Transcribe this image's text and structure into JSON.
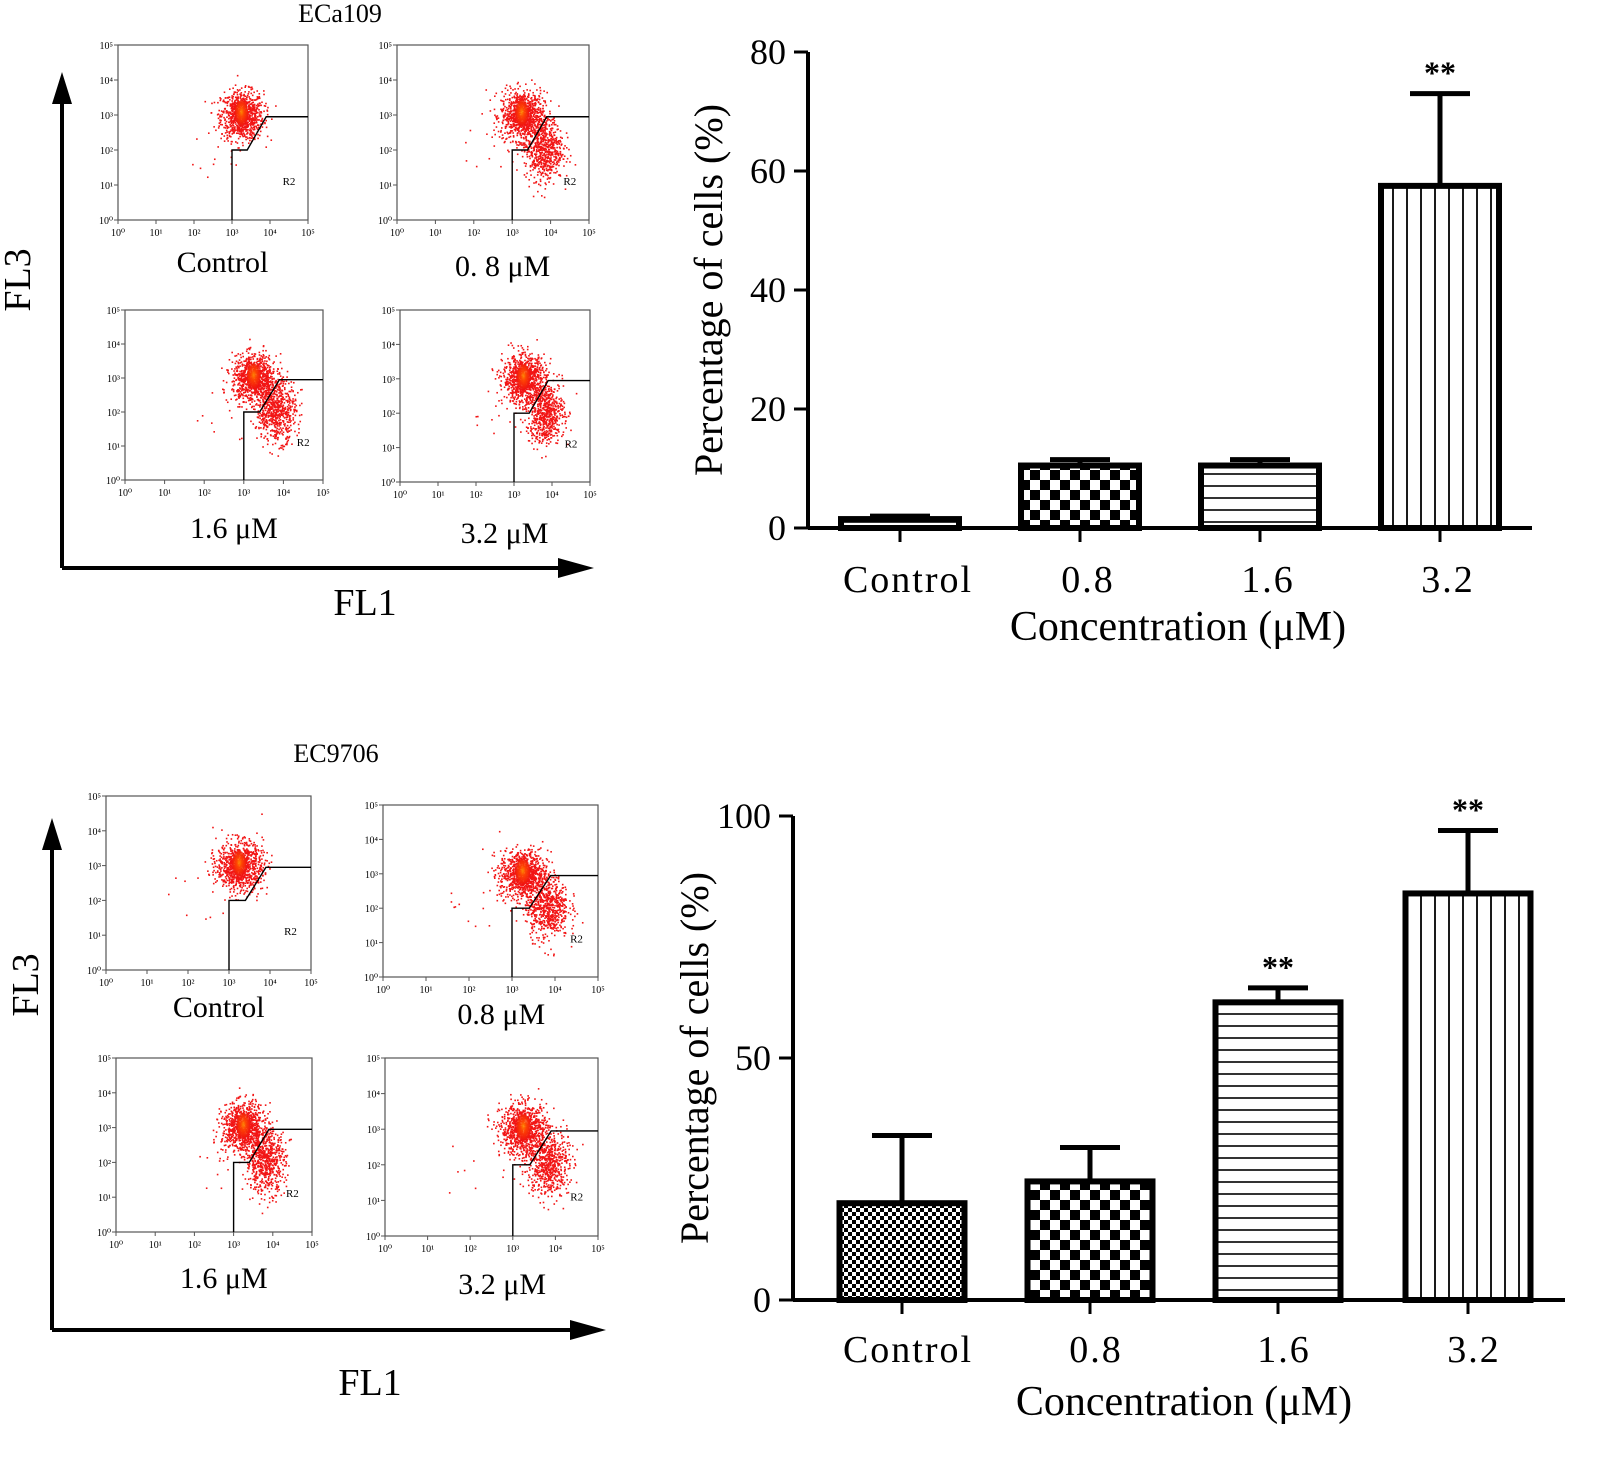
{
  "chart_data": [
    {
      "type": "scatter",
      "title": "ECa109",
      "xlabel": "FL1",
      "ylabel": "FL3",
      "panels": [
        {
          "label": "Control",
          "gate": "R2",
          "lower_right_cluster": false
        },
        {
          "label": "0. 8 μM",
          "gate": "R2",
          "lower_right_cluster": true
        },
        {
          "label": "1.6 μM",
          "gate": "R2",
          "lower_right_cluster": true
        },
        {
          "label": "3.2 μM",
          "gate": "R2",
          "lower_right_cluster": true
        }
      ],
      "tick_labels": [
        "10⁰",
        "10¹",
        "10²",
        "10³",
        "10⁴",
        "10⁵"
      ]
    },
    {
      "type": "bar",
      "title": "",
      "xlabel": "Concentration (μM)",
      "ylabel": "Percentage of cells (%)",
      "ylim": [
        0,
        80
      ],
      "yticks": [
        0,
        20,
        40,
        60,
        80
      ],
      "categories": [
        "Control",
        "0.8",
        "1.6",
        "3.2"
      ],
      "values": [
        1.5,
        10.5,
        10.5,
        57.5
      ],
      "errors": [
        0.5,
        1.0,
        1.0,
        15.5
      ],
      "patterns": [
        "hlines",
        "checker",
        "hlines",
        "vlines"
      ],
      "annotations": [
        "",
        "",
        "",
        "**"
      ]
    },
    {
      "type": "scatter",
      "title": "EC9706",
      "xlabel": "FL1",
      "ylabel": "FL3",
      "panels": [
        {
          "label": "Control",
          "gate": "R2",
          "lower_right_cluster": false
        },
        {
          "label": "0.8 μM",
          "gate": "R2",
          "lower_right_cluster": true
        },
        {
          "label": "1.6 μM",
          "gate": "R2",
          "lower_right_cluster": true
        },
        {
          "label": "3.2 μM",
          "gate": "R2",
          "lower_right_cluster": true
        }
      ],
      "tick_labels": [
        "10⁰",
        "10¹",
        "10²",
        "10³",
        "10⁴",
        "10⁵"
      ]
    },
    {
      "type": "bar",
      "title": "",
      "xlabel": "Concentration (μM)",
      "ylabel": "Percentage of cells (%)",
      "ylim": [
        0,
        100
      ],
      "yticks": [
        0,
        50,
        100
      ],
      "categories": [
        "Control",
        "0.8",
        "1.6",
        "3.2"
      ],
      "values": [
        20,
        24.5,
        61.5,
        84
      ],
      "errors": [
        14,
        7,
        3,
        13
      ],
      "patterns": [
        "finecheck",
        "checker",
        "hlines",
        "vlines"
      ],
      "annotations": [
        "",
        "",
        "**",
        "**"
      ]
    }
  ]
}
